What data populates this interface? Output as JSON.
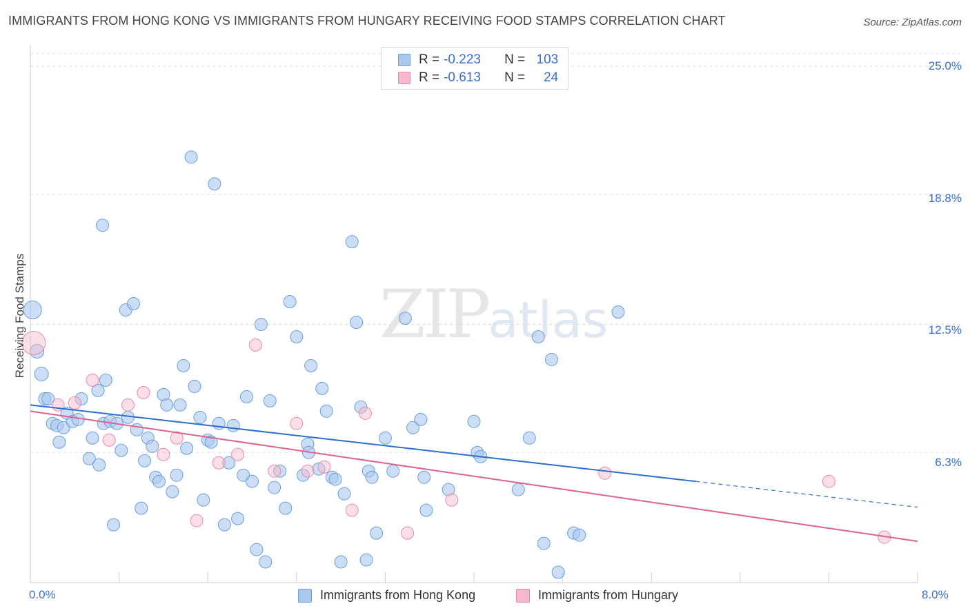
{
  "header": {
    "title": "IMMIGRANTS FROM HONG KONG VS IMMIGRANTS FROM HUNGARY RECEIVING FOOD STAMPS CORRELATION CHART",
    "source": "Source: ZipAtlas.com"
  },
  "watermark": {
    "zip": "ZIP",
    "atlas": "atlas"
  },
  "legend": {
    "rows": [
      {
        "r_label": "R =",
        "r_value": "-0.223",
        "n_label": "N =",
        "n_value": "103"
      },
      {
        "r_label": "R =",
        "r_value": "-0.613",
        "n_label": "N =",
        "n_value": "24"
      }
    ]
  },
  "colors": {
    "blue_fill": "#a8c8f0",
    "blue_stroke": "#6a9fd8",
    "blue_line": "#2a6fd0",
    "pink_fill": "#f7b8cc",
    "pink_stroke": "#e889a8",
    "pink_line": "#e0608f",
    "grid": "#dddddd",
    "axis_text": "#3a6fcf"
  },
  "chart_data": {
    "type": "scatter",
    "title": "IMMIGRANTS FROM HONG KONG VS IMMIGRANTS FROM HUNGARY RECEIVING FOOD STAMPS CORRELATION CHART",
    "xlabel": "",
    "ylabel": "Receiving Food Stamps",
    "xlim": [
      0,
      8
    ],
    "ylim": [
      0,
      25.0
    ],
    "x_tick_labels": [
      "0.0%",
      "8.0%"
    ],
    "y_ticks": [
      6.3,
      12.5,
      18.8,
      25.0
    ],
    "y_tick_labels": [
      "6.3%",
      "12.5%",
      "18.8%",
      "25.0%"
    ],
    "grid": true,
    "legend_position": "top-center",
    "series": [
      {
        "name": "Immigrants from Hong Kong",
        "color": "#a8c8f0",
        "trend": {
          "x0": 0.0,
          "y0": 8.6,
          "x1": 6.0,
          "y1": 4.9,
          "dashed_to_x": 8.0,
          "dashed_to_y": 3.65
        },
        "points": [
          [
            0.02,
            13.2,
            13
          ],
          [
            0.06,
            11.2,
            10
          ],
          [
            0.1,
            10.1,
            10
          ],
          [
            0.13,
            8.9,
            9
          ],
          [
            0.16,
            8.9,
            9
          ],
          [
            0.2,
            7.7,
            9
          ],
          [
            0.24,
            7.6,
            9
          ],
          [
            0.26,
            6.8,
            9
          ],
          [
            0.3,
            7.5,
            9
          ],
          [
            0.33,
            8.2,
            9
          ],
          [
            0.38,
            7.8,
            9
          ],
          [
            0.43,
            7.9,
            9
          ],
          [
            0.46,
            8.9,
            9
          ],
          [
            0.53,
            6.0,
            9
          ],
          [
            0.56,
            7.0,
            9
          ],
          [
            0.61,
            9.3,
            9
          ],
          [
            0.62,
            5.7,
            9
          ],
          [
            0.65,
            17.3,
            9
          ],
          [
            0.66,
            7.7,
            9
          ],
          [
            0.68,
            9.8,
            9
          ],
          [
            0.72,
            7.8,
            9
          ],
          [
            0.75,
            2.8,
            9
          ],
          [
            0.78,
            7.7,
            9
          ],
          [
            0.82,
            6.4,
            9
          ],
          [
            0.86,
            13.2,
            9
          ],
          [
            0.88,
            8.0,
            9
          ],
          [
            0.93,
            13.5,
            9
          ],
          [
            0.96,
            7.4,
            9
          ],
          [
            1.0,
            3.6,
            9
          ],
          [
            1.03,
            5.9,
            9
          ],
          [
            1.06,
            7.0,
            9
          ],
          [
            1.1,
            6.6,
            9
          ],
          [
            1.13,
            5.1,
            9
          ],
          [
            1.16,
            4.9,
            9
          ],
          [
            1.2,
            9.1,
            9
          ],
          [
            1.23,
            8.6,
            9
          ],
          [
            1.28,
            4.4,
            9
          ],
          [
            1.32,
            5.2,
            9
          ],
          [
            1.35,
            8.6,
            9
          ],
          [
            1.38,
            10.5,
            9
          ],
          [
            1.41,
            6.5,
            9
          ],
          [
            1.45,
            20.6,
            9
          ],
          [
            1.48,
            9.5,
            9
          ],
          [
            1.53,
            8.0,
            9
          ],
          [
            1.56,
            4.0,
            9
          ],
          [
            1.6,
            6.9,
            9
          ],
          [
            1.63,
            6.8,
            9
          ],
          [
            1.66,
            19.3,
            9
          ],
          [
            1.7,
            7.7,
            9
          ],
          [
            1.75,
            2.8,
            9
          ],
          [
            1.79,
            5.8,
            9
          ],
          [
            1.83,
            7.6,
            9
          ],
          [
            1.87,
            3.1,
            9
          ],
          [
            1.92,
            5.2,
            9
          ],
          [
            1.95,
            9.0,
            9
          ],
          [
            2.0,
            4.9,
            9
          ],
          [
            2.04,
            1.6,
            9
          ],
          [
            2.08,
            12.5,
            9
          ],
          [
            2.12,
            1.0,
            9
          ],
          [
            2.16,
            8.8,
            9
          ],
          [
            2.2,
            4.6,
            9
          ],
          [
            2.25,
            5.4,
            9
          ],
          [
            2.3,
            3.6,
            9
          ],
          [
            2.34,
            13.6,
            9
          ],
          [
            2.4,
            11.9,
            9
          ],
          [
            2.46,
            5.2,
            9
          ],
          [
            2.5,
            6.7,
            9
          ],
          [
            2.51,
            6.3,
            9
          ],
          [
            2.53,
            10.5,
            9
          ],
          [
            2.6,
            5.5,
            9
          ],
          [
            2.63,
            9.4,
            9
          ],
          [
            2.67,
            8.3,
            9
          ],
          [
            2.72,
            5.1,
            9
          ],
          [
            2.75,
            5.0,
            9
          ],
          [
            2.8,
            1.0,
            9
          ],
          [
            2.83,
            4.3,
            9
          ],
          [
            2.9,
            16.5,
            9
          ],
          [
            2.94,
            12.6,
            9
          ],
          [
            2.98,
            8.5,
            9
          ],
          [
            3.03,
            1.1,
            9
          ],
          [
            3.05,
            5.4,
            9
          ],
          [
            3.08,
            5.1,
            9
          ],
          [
            3.12,
            2.4,
            9
          ],
          [
            3.2,
            7.0,
            9
          ],
          [
            3.27,
            5.4,
            9
          ],
          [
            3.38,
            12.8,
            9
          ],
          [
            3.45,
            7.5,
            9
          ],
          [
            3.52,
            7.9,
            9
          ],
          [
            3.55,
            5.1,
            9
          ],
          [
            3.57,
            3.5,
            9
          ],
          [
            3.77,
            4.5,
            9
          ],
          [
            4.0,
            7.8,
            9
          ],
          [
            4.03,
            6.3,
            9
          ],
          [
            4.06,
            6.1,
            9
          ],
          [
            4.4,
            4.5,
            9
          ],
          [
            4.5,
            7.0,
            9
          ],
          [
            4.58,
            11.9,
            9
          ],
          [
            4.63,
            1.9,
            9
          ],
          [
            4.7,
            10.8,
            9
          ],
          [
            4.76,
            0.5,
            9
          ],
          [
            4.9,
            2.4,
            9
          ],
          [
            4.95,
            2.3,
            9
          ],
          [
            5.3,
            13.1,
            9
          ]
        ]
      },
      {
        "name": "Immigrants from Hungary",
        "color": "#f7b8cc",
        "trend": {
          "x0": 0.0,
          "y0": 8.3,
          "x1": 8.0,
          "y1": 2.0
        },
        "points": [
          [
            0.03,
            11.6,
            17
          ],
          [
            0.25,
            8.6,
            9
          ],
          [
            0.4,
            8.7,
            9
          ],
          [
            0.56,
            9.8,
            9
          ],
          [
            0.71,
            6.9,
            9
          ],
          [
            0.88,
            8.6,
            9
          ],
          [
            1.02,
            9.2,
            9
          ],
          [
            1.2,
            6.2,
            9
          ],
          [
            1.32,
            7.0,
            9
          ],
          [
            1.5,
            3.0,
            9
          ],
          [
            1.7,
            5.8,
            9
          ],
          [
            1.87,
            6.2,
            9
          ],
          [
            2.03,
            11.5,
            9
          ],
          [
            2.2,
            5.4,
            9
          ],
          [
            2.4,
            7.7,
            9
          ],
          [
            2.5,
            5.4,
            9
          ],
          [
            2.65,
            5.6,
            9
          ],
          [
            2.9,
            3.5,
            9
          ],
          [
            3.02,
            8.2,
            9
          ],
          [
            3.4,
            2.4,
            9
          ],
          [
            3.8,
            4.0,
            9
          ],
          [
            5.18,
            5.3,
            9
          ],
          [
            7.2,
            4.9,
            9
          ],
          [
            7.7,
            2.2,
            9
          ]
        ]
      }
    ]
  },
  "bottom_legend": {
    "items": [
      {
        "label": "Immigrants from Hong Kong"
      },
      {
        "label": "Immigrants from Hungary"
      }
    ]
  }
}
